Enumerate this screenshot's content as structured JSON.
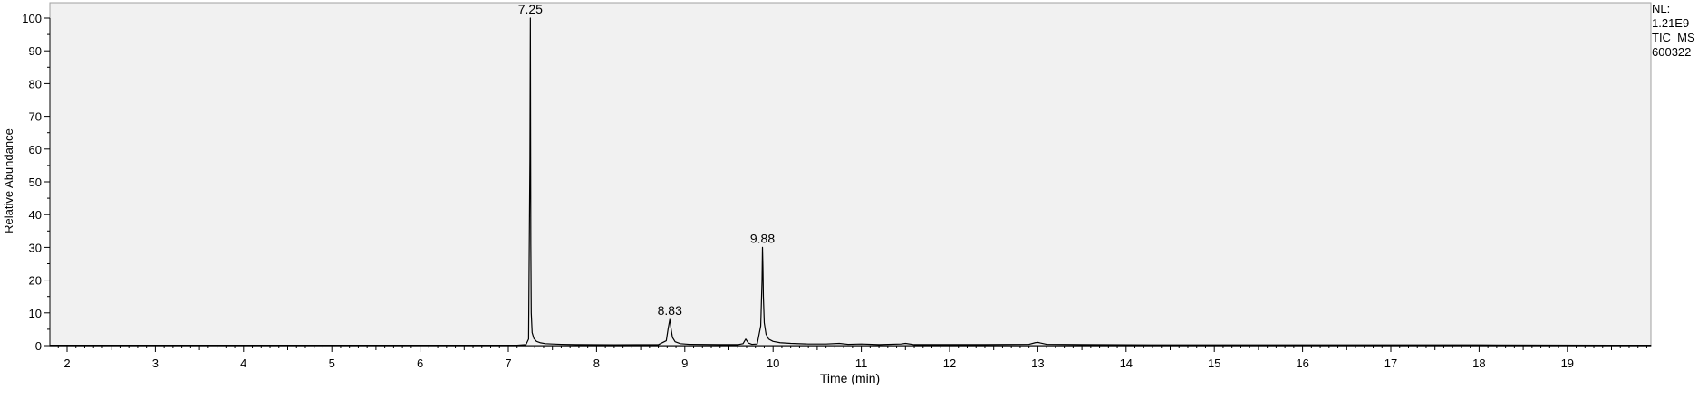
{
  "chart_data": {
    "type": "line",
    "xlabel": "Time (min)",
    "ylabel": "Relative Abundance",
    "xlim": [
      1.8,
      19.95
    ],
    "ylim": [
      0,
      100
    ],
    "x_ticks": [
      2,
      3,
      4,
      5,
      6,
      7,
      8,
      9,
      10,
      11,
      12,
      13,
      14,
      15,
      16,
      17,
      18,
      19
    ],
    "y_ticks": [
      0,
      10,
      20,
      30,
      40,
      50,
      60,
      70,
      80,
      90,
      100
    ],
    "grid": false,
    "info_lines": [
      "NL:",
      "1.21E9",
      "TIC  MS",
      "600322"
    ],
    "peak_labels": [
      {
        "x": 7.25,
        "y": 100,
        "text": "7.25"
      },
      {
        "x": 8.83,
        "y": 8,
        "text": "8.83"
      },
      {
        "x": 9.88,
        "y": 30,
        "text": "9.88"
      }
    ],
    "series": [
      {
        "color": "#000000",
        "x": [
          1.8,
          7.1,
          7.2,
          7.23,
          7.245,
          7.25,
          7.255,
          7.26,
          7.27,
          7.29,
          7.32,
          7.36,
          7.42,
          7.5,
          7.6,
          7.8,
          8.2,
          8.7,
          8.79,
          8.81,
          8.83,
          8.845,
          8.86,
          8.89,
          8.95,
          9.05,
          9.4,
          9.6,
          9.66,
          9.69,
          9.72,
          9.76,
          9.82,
          9.86,
          9.875,
          9.88,
          9.885,
          9.89,
          9.9,
          9.92,
          9.95,
          10.0,
          10.08,
          10.2,
          10.4,
          10.6,
          10.75,
          10.85,
          11.0,
          11.2,
          11.45,
          11.5,
          11.6,
          11.9,
          12.4,
          12.9,
          12.97,
          13.0,
          13.03,
          13.1,
          13.5,
          14.5,
          16.0,
          18.0,
          19.95
        ],
        "y": [
          0.1,
          0.1,
          0.3,
          2,
          57,
          100,
          31,
          10,
          4,
          2.2,
          1.3,
          0.9,
          0.6,
          0.5,
          0.4,
          0.3,
          0.25,
          0.3,
          1.5,
          5,
          8,
          5,
          2.5,
          1.2,
          0.6,
          0.4,
          0.3,
          0.3,
          0.6,
          2,
          0.8,
          0.4,
          0.5,
          6,
          20,
          30,
          24,
          15,
          7,
          3.5,
          2,
          1.3,
          0.9,
          0.7,
          0.5,
          0.5,
          0.7,
          0.4,
          0.5,
          0.3,
          0.5,
          0.7,
          0.3,
          0.3,
          0.3,
          0.4,
          0.9,
          1.0,
          0.8,
          0.4,
          0.3,
          0.2,
          0.2,
          0.2,
          0.1
        ]
      }
    ]
  }
}
